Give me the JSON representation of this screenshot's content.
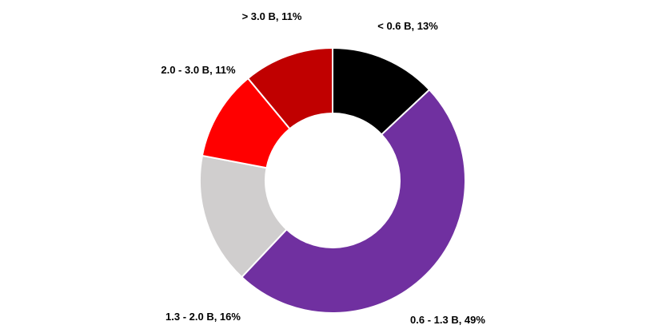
{
  "chart_data": {
    "type": "pie",
    "donut": true,
    "title": "",
    "categories": [
      "< 0.6 B",
      "0.6 - 1.3 B",
      "1.3 - 2.0 B",
      "2.0 - 3.0 B",
      "> 3.0 B"
    ],
    "values": [
      13,
      49,
      16,
      11,
      11
    ],
    "unit": "%",
    "labels": [
      "< 0.6 B, 13%",
      "0.6 - 1.3 B, 49%",
      "1.3 - 2.0 B, 16%",
      "2.0 - 3.0 B, 11%",
      "> 3.0 B, 11%"
    ],
    "colors": [
      "#000000",
      "#7030a0",
      "#d0cece",
      "#ff0000",
      "#c00000"
    ],
    "legend": "none",
    "start_angle": "12 o'clock",
    "direction": "clockwise"
  }
}
